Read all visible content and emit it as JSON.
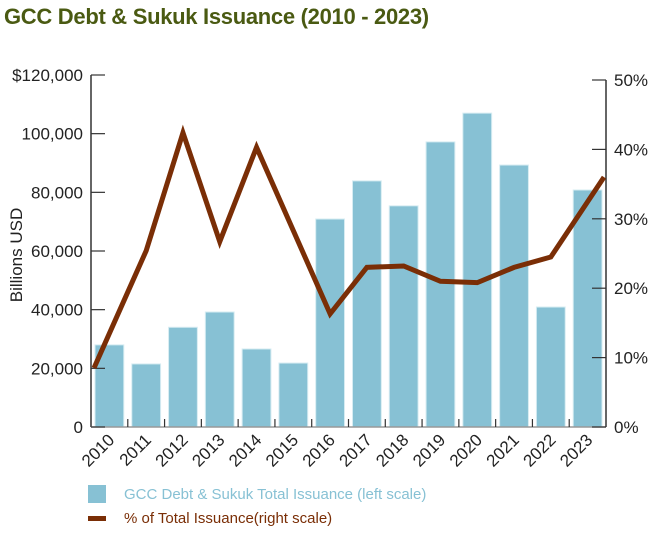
{
  "chart_data": {
    "type": "bar+line",
    "title": "GCC Debt & Sukuk Issuance (2010 - 2023)",
    "xlabel": "",
    "ylabel": "Billions USD",
    "y2label": "",
    "categories": [
      "2010",
      "2011",
      "2012",
      "2013",
      "2014",
      "2015",
      "2016",
      "2017",
      "2018",
      "2019",
      "2020",
      "2021",
      "2022",
      "2023"
    ],
    "series": [
      {
        "name": "GCC Debt & Sukuk Total Issuance (left scale)",
        "type": "bar",
        "axis": "left",
        "color": "#87c1d4",
        "values": [
          28000,
          21500,
          34000,
          39200,
          26600,
          21800,
          70900,
          83900,
          75400,
          97200,
          107000,
          89300,
          40900,
          80800
        ]
      },
      {
        "name": "% of Total Issuance(right scale)",
        "type": "line",
        "axis": "right",
        "color": "#7a2e06",
        "values": [
          8.5,
          25.4,
          42.4,
          26.7,
          40.3,
          28.3,
          16.3,
          23.0,
          23.2,
          21.0,
          20.8,
          23.0,
          24.5,
          36.0
        ]
      }
    ],
    "ylim": [
      0,
      120000
    ],
    "y2lim": [
      0,
      50
    ],
    "yticks": [
      "0",
      "20,000",
      "40,000",
      "60,000",
      "80,000",
      "100,000",
      "$120,000"
    ],
    "y2ticks": [
      "0%",
      "10%",
      "20%",
      "30%",
      "40%",
      "50%"
    ],
    "grid": false,
    "legend_position": "bottom"
  },
  "title": "GCC Debt & Sukuk Issuance (2010 - 2023)",
  "legend": {
    "bar_label": "GCC Debt & Sukuk Total Issuance (left scale)",
    "line_label": "% of Total Issuance(right scale)"
  },
  "colors": {
    "title": "#4a5a12",
    "bar": "#87c1d4",
    "line": "#7a2e06",
    "bar_legend_text": "#87c1d4",
    "line_legend_text": "#7a2e06"
  }
}
